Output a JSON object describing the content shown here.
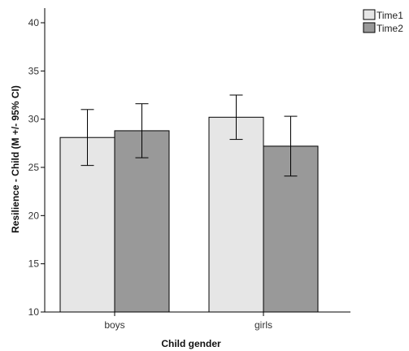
{
  "chart_data": {
    "type": "bar",
    "title": "",
    "xlabel": "Child gender",
    "ylabel": "Resilience - Child (M +/- 95% CI)",
    "categories": [
      "boys",
      "girls"
    ],
    "ylim": [
      10,
      40
    ],
    "yticks": [
      10,
      15,
      20,
      25,
      30,
      35,
      40
    ],
    "grid": false,
    "legend_position": "top-right",
    "series": [
      {
        "name": "Time1",
        "color": "#e6e6e6",
        "values": [
          28.1,
          30.2
        ],
        "ci_low": [
          25.2,
          27.9
        ],
        "ci_high": [
          31.0,
          32.5
        ]
      },
      {
        "name": "Time2",
        "color": "#999999",
        "values": [
          28.8,
          27.2
        ],
        "ci_low": [
          26.0,
          24.1
        ],
        "ci_high": [
          31.6,
          30.3
        ]
      }
    ]
  }
}
